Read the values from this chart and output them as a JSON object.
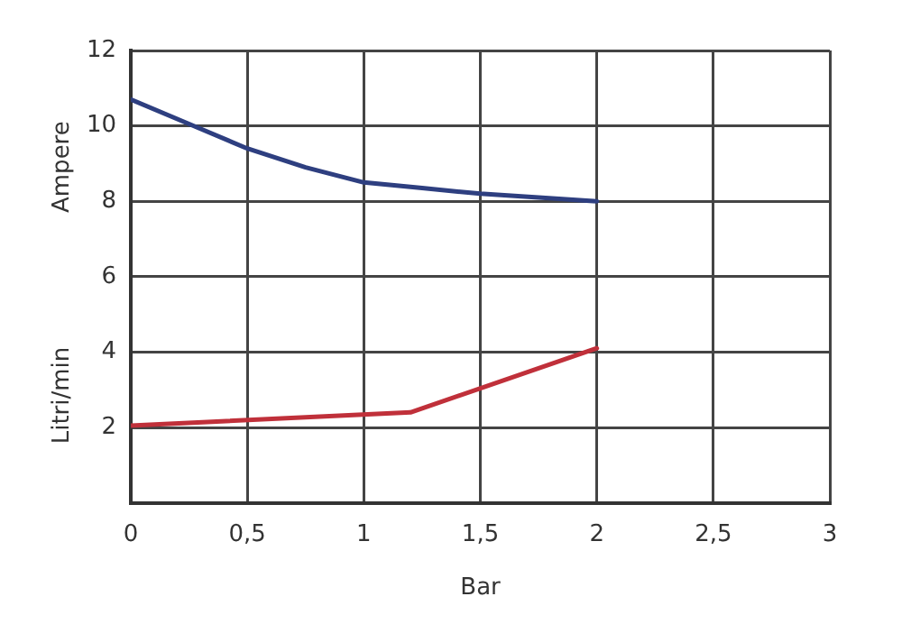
{
  "chart_data": {
    "type": "line",
    "xlabel": "Bar",
    "xlim": [
      0,
      3
    ],
    "xticks": [
      0,
      {
        "value": 0.5,
        "label": "0,5"
      },
      1,
      {
        "value": 1.5,
        "label": "1,5"
      },
      2,
      {
        "value": 2.5,
        "label": "2,5"
      },
      3
    ],
    "ylim": [
      0,
      12
    ],
    "yticks": [
      2,
      4,
      6,
      8,
      10,
      12
    ],
    "grid": true,
    "marker": "none",
    "line_style": "solid",
    "series": [
      {
        "name": "Ampere",
        "color": "#2e3f80",
        "x": [
          0,
          0.25,
          0.5,
          0.75,
          1,
          1.25,
          1.5,
          1.75,
          2
        ],
        "values": [
          10.7,
          10.05,
          9.4,
          8.9,
          8.5,
          8.35,
          8.2,
          8.1,
          8.0
        ]
      },
      {
        "name": "Litri/min",
        "color": "#c0303a",
        "x": [
          0,
          1.2,
          2
        ],
        "values": [
          2.05,
          2.4,
          4.1
        ]
      }
    ]
  }
}
